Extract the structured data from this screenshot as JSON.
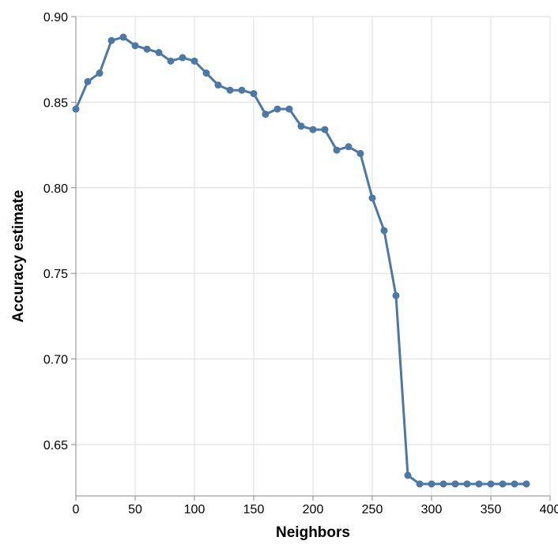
{
  "chart_data": {
    "type": "line",
    "title": "",
    "xlabel": "Neighbors",
    "ylabel": "Accuracy estimate",
    "xlim": [
      0,
      400
    ],
    "ylim": [
      0.62,
      0.9
    ],
    "x_ticks": [
      "0",
      "50",
      "100",
      "150",
      "200",
      "250",
      "300",
      "350",
      "400"
    ],
    "y_ticks": [
      "0.65",
      "0.70",
      "0.75",
      "0.80",
      "0.85",
      "0.90"
    ],
    "grid": true,
    "legend": "none",
    "series": [
      {
        "color": "#4c78a8",
        "x": [
          0,
          10,
          20,
          30,
          40,
          50,
          60,
          70,
          80,
          90,
          100,
          110,
          120,
          130,
          140,
          150,
          160,
          170,
          180,
          190,
          200,
          210,
          220,
          230,
          240,
          250,
          260,
          270,
          280,
          290,
          300,
          310,
          320,
          330,
          340,
          350,
          360,
          370,
          380
        ],
        "y": [
          0.846,
          0.862,
          0.867,
          0.886,
          0.888,
          0.883,
          0.881,
          0.879,
          0.874,
          0.876,
          0.874,
          0.867,
          0.86,
          0.857,
          0.857,
          0.855,
          0.843,
          0.846,
          0.846,
          0.836,
          0.834,
          0.834,
          0.822,
          0.824,
          0.82,
          0.794,
          0.775,
          0.737,
          0.632,
          0.627,
          0.627,
          0.627,
          0.627,
          0.627,
          0.627,
          0.627,
          0.627,
          0.627,
          0.627
        ]
      }
    ]
  }
}
